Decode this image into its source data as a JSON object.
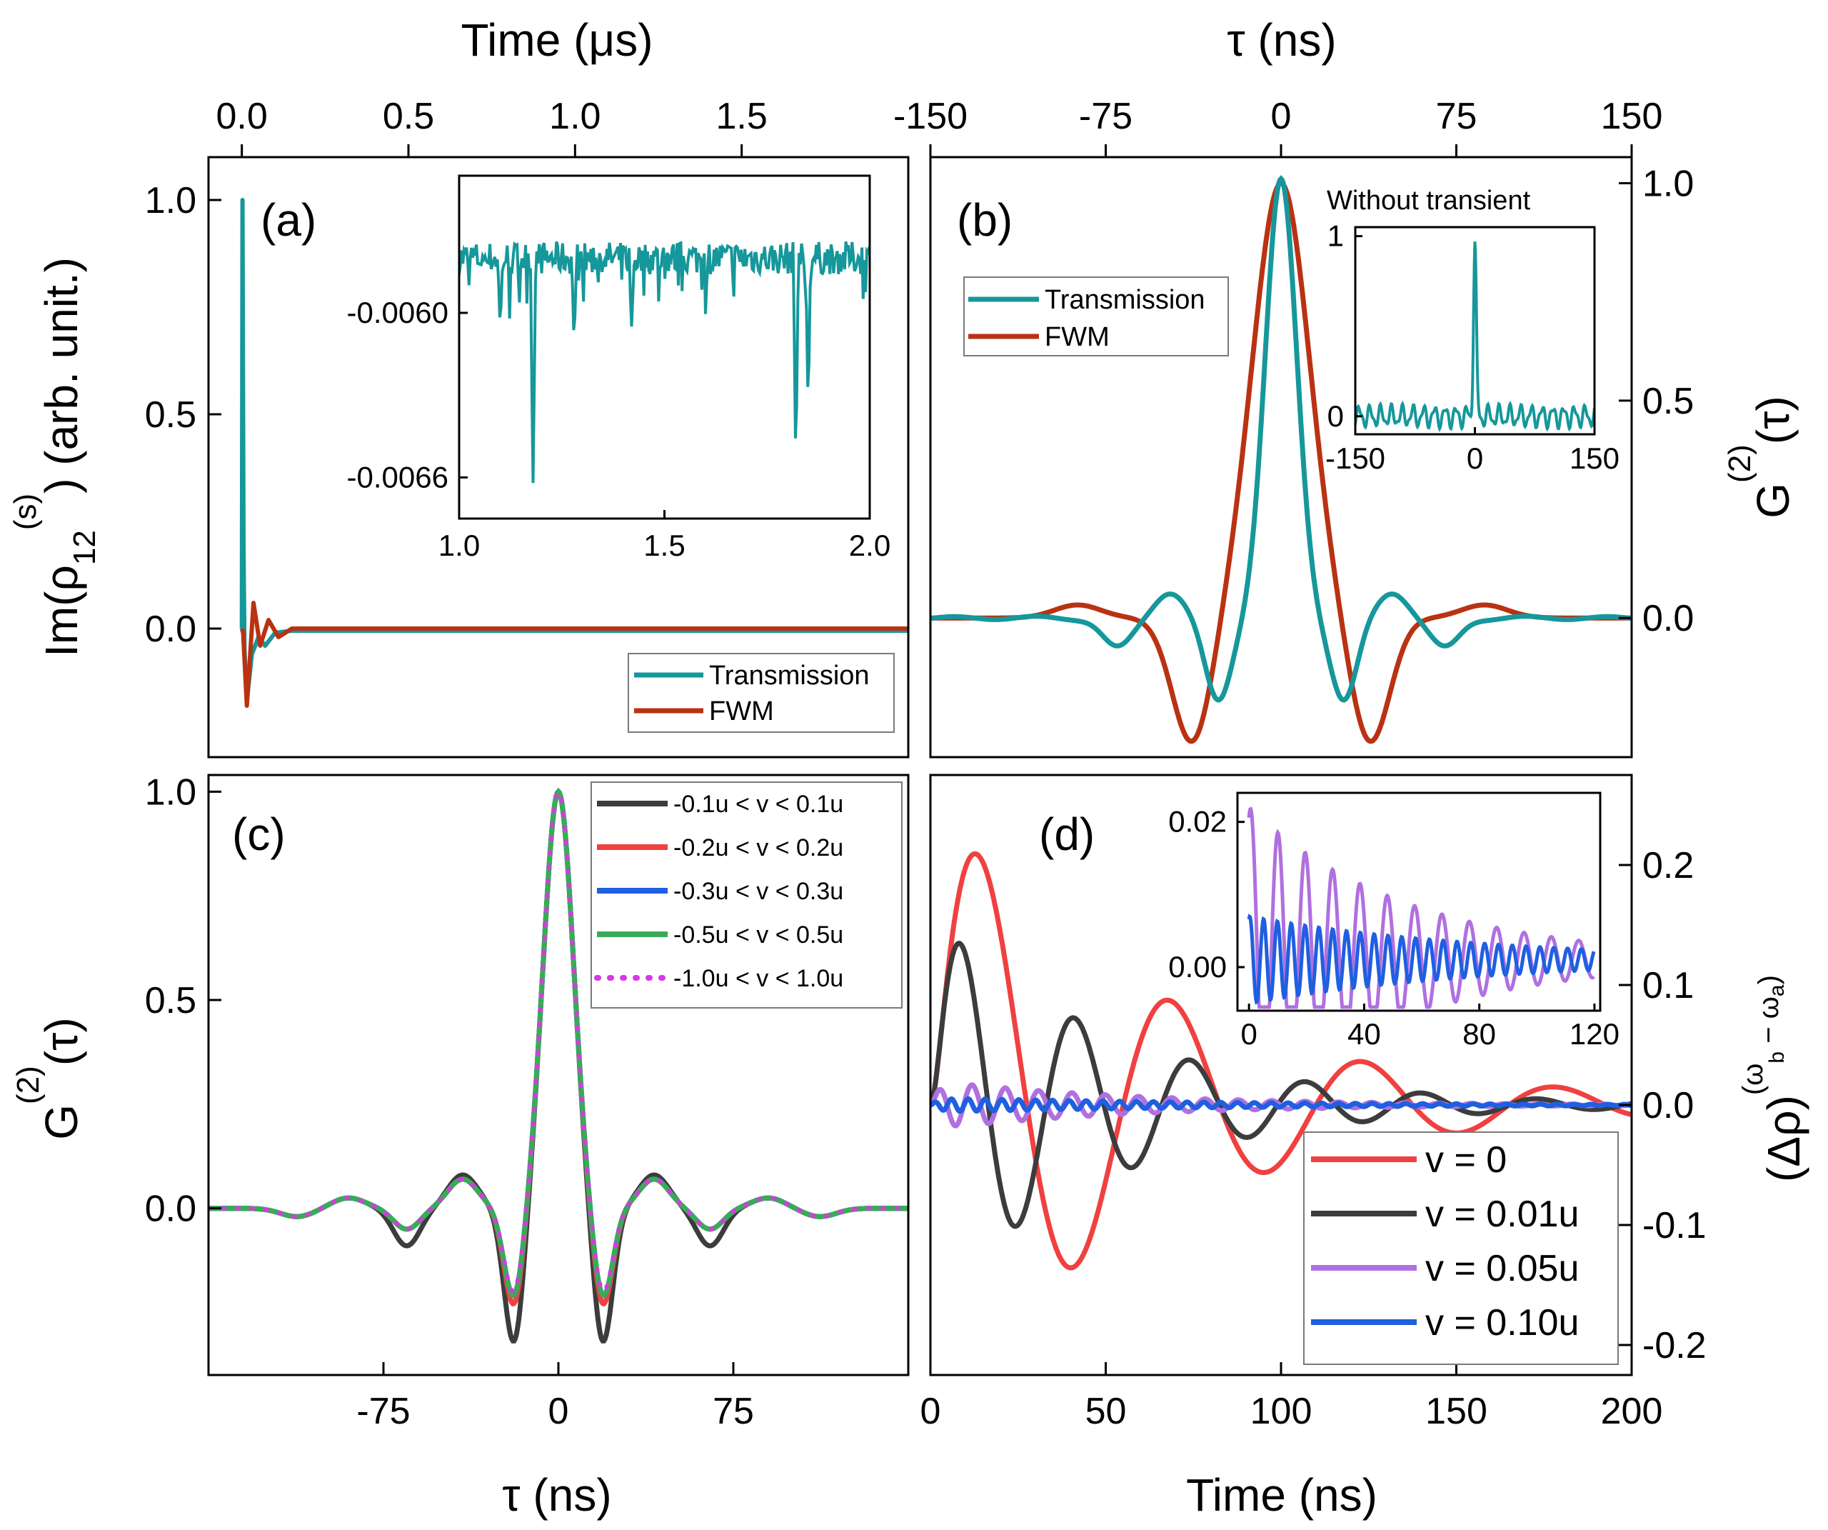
{
  "figure": {
    "top_left_axis_title": "Time (μs)",
    "top_right_axis_title": "τ (ns)",
    "bottom_left_axis_title": "τ (ns)",
    "bottom_right_axis_title": "Time (ns)"
  },
  "colors": {
    "teal": "#16979b",
    "rust": "#b93212",
    "black": "#3c3c3c",
    "red": "#f04040",
    "blue": "#1f5fe0",
    "green": "#3aaa5a",
    "magenta": "#d63ae0",
    "purple": "#b070e0"
  },
  "chart_data": [
    {
      "panel": "a",
      "label": "(a)",
      "type": "line",
      "ylabel": "Im(ρ12(s)) (arb. unit.)",
      "xlabel": "Time (μs)",
      "xlim": [
        -0.1,
        2.0
      ],
      "ylim": [
        -0.3,
        1.1
      ],
      "xticks": [
        "0.0",
        "0.5",
        "1.0",
        "1.5"
      ],
      "xtick_values": [
        0.0,
        0.5,
        1.0,
        1.5
      ],
      "yticks": [
        "0.0",
        "0.5",
        "1.0"
      ],
      "ytick_values": [
        0.0,
        0.5,
        1.0
      ],
      "series": [
        {
          "name": "Transmission",
          "color": "#16979b",
          "points": [
            [
              0,
              0
            ],
            [
              0.002,
              1.0
            ],
            [
              0.005,
              0.2
            ],
            [
              0.008,
              -0.05
            ],
            [
              0.015,
              -0.17
            ],
            [
              0.03,
              -0.06
            ],
            [
              0.05,
              -0.02
            ],
            [
              0.07,
              -0.04
            ],
            [
              0.1,
              -0.01
            ],
            [
              0.15,
              -0.005
            ],
            [
              2.0,
              -0.005
            ]
          ]
        },
        {
          "name": "FWM",
          "color": "#b93212",
          "points": [
            [
              0,
              0
            ],
            [
              0.004,
              -0.01
            ],
            [
              0.015,
              -0.18
            ],
            [
              0.035,
              0.06
            ],
            [
              0.055,
              -0.04
            ],
            [
              0.08,
              0.02
            ],
            [
              0.11,
              -0.02
            ],
            [
              0.15,
              0.0
            ],
            [
              2.0,
              0.0
            ]
          ]
        }
      ],
      "legend": {
        "entries": [
          "Transmission",
          "FWM"
        ],
        "position": "bottom-right"
      },
      "inset": {
        "xlim": [
          1.0,
          2.0
        ],
        "ylim": [
          -0.00675,
          -0.0055
        ],
        "xticks": [
          "1.0",
          "1.5",
          "2.0"
        ],
        "xtick_values": [
          1.0,
          1.5,
          2.0
        ],
        "yticks": [
          "-0.0060",
          "-0.0066"
        ],
        "ytick_values": [
          -0.006,
          -0.0066
        ],
        "baseline": -0.0058,
        "spikes": [
          [
            1.18,
            -0.00662
          ],
          [
            1.82,
            -0.0065
          ],
          [
            1.85,
            -0.0063
          ],
          [
            1.28,
            -0.00608
          ],
          [
            1.42,
            -0.00605
          ],
          [
            1.1,
            -0.00603
          ]
        ]
      }
    },
    {
      "panel": "b",
      "label": "(b)",
      "type": "line",
      "ylabel": "G(2)(τ)",
      "xlabel": "τ (ns)",
      "xlim": [
        -150,
        150
      ],
      "ylim": [
        -0.32,
        1.06
      ],
      "xticks": [
        "-150",
        "-75",
        "0",
        "75",
        "150"
      ],
      "xtick_values": [
        -150,
        -75,
        0,
        75,
        150
      ],
      "yticks": [
        "0.0",
        "0.5",
        "1.0"
      ],
      "ytick_values": [
        0.0,
        0.5,
        1.0
      ],
      "series": [
        {
          "name": "Transmission",
          "color": "#16979b",
          "peak": 1.0,
          "period": 43,
          "decay": 0.022,
          "offset": 0.0
        },
        {
          "name": "FWM",
          "color": "#b93212",
          "peak": 1.0,
          "period": 78,
          "decay": 0.018,
          "offset": 0.0
        }
      ],
      "legend": {
        "entries": [
          "Transmission",
          "FWM"
        ],
        "position": "top-left"
      },
      "inset": {
        "title": "Without transient",
        "xlim": [
          -150,
          150
        ],
        "ylim": [
          -0.1,
          1.05
        ],
        "xticks": [
          "-150",
          "0",
          "150"
        ],
        "xtick_values": [
          -150,
          0,
          150
        ],
        "yticks": [
          "0",
          "1"
        ],
        "ytick_values": [
          0,
          1
        ]
      }
    },
    {
      "panel": "c",
      "label": "(c)",
      "type": "line",
      "ylabel": "G(2)(τ)",
      "xlabel": "τ (ns)",
      "xlim": [
        -150,
        150
      ],
      "ylim": [
        -0.4,
        1.04
      ],
      "xticks": [
        "-75",
        "0",
        "75"
      ],
      "xtick_values": [
        -75,
        0,
        75
      ],
      "yticks": [
        "0.0",
        "0.5",
        "1.0"
      ],
      "ytick_values": [
        0.0,
        0.5,
        1.0
      ],
      "series": [
        {
          "name": "-0.1u < v < 0.1u",
          "color": "#3c3c3c",
          "dip": -0.33,
          "dash": false
        },
        {
          "name": "-0.2u < v < 0.2u",
          "color": "#f04040",
          "dip": -0.24,
          "dash": false
        },
        {
          "name": "-0.3u < v < 0.3u",
          "color": "#1f5fe0",
          "dip": -0.22,
          "dash": false
        },
        {
          "name": "-0.5u < v < 0.5u",
          "color": "#3aaa5a",
          "dip": -0.22,
          "dash": false
        },
        {
          "name": "-1.0u < v < 1.0u",
          "color": "#d63ae0",
          "dip": -0.21,
          "dash": true
        }
      ],
      "legend": {
        "entries": [
          "-0.1u < v < 0.1u",
          "-0.2u < v < 0.2u",
          "-0.3u < v < 0.3u",
          "-0.5u < v < 0.5u",
          "-1.0u < v < 1.0u"
        ],
        "position": "top-right"
      }
    },
    {
      "panel": "d",
      "label": "(d)",
      "type": "line",
      "ylabel": "(Δρ)(ωb − ωa)",
      "xlabel": "Time (ns)",
      "xlim": [
        0,
        200
      ],
      "ylim": [
        -0.225,
        0.275
      ],
      "xticks": [
        "0",
        "50",
        "100",
        "150",
        "200"
      ],
      "xtick_values": [
        0,
        50,
        100,
        150,
        200
      ],
      "yticks": [
        "0.2",
        "0.1",
        "0.0",
        "-0.1",
        "-0.2"
      ],
      "ytick_values": [
        0.2,
        0.1,
        0.0,
        -0.1,
        -0.2
      ],
      "series": [
        {
          "name": "v = 0",
          "color": "#f04040",
          "amp": 0.26,
          "period": 55,
          "decay": 0.016,
          "phase": 0.0
        },
        {
          "name": "v = 0.01u",
          "color": "#3c3c3c",
          "amp": 0.165,
          "period": 33,
          "decay": 0.02,
          "phase": 0.0
        },
        {
          "name": "v = 0.05u",
          "color": "#b070e0",
          "amp": 0.021,
          "period": 9.5,
          "decay": 0.018,
          "phase": 0.0
        },
        {
          "name": "v = 0.10u",
          "color": "#1f5fe0",
          "amp": 0.006,
          "period": 4.8,
          "decay": 0.012,
          "phase": 0.0
        }
      ],
      "legend": {
        "entries": [
          "v = 0",
          "v = 0.01u",
          "v = 0.05u",
          "v = 0.10u"
        ],
        "position": "bottom-right"
      },
      "inset": {
        "xlim": [
          -4,
          122
        ],
        "ylim": [
          -0.006,
          0.024
        ],
        "xticks": [
          "0",
          "40",
          "80",
          "120"
        ],
        "xtick_values": [
          0,
          40,
          80,
          120
        ],
        "yticks": [
          "0.02",
          "0.00"
        ],
        "ytick_values": [
          0.02,
          0.0
        ]
      }
    }
  ]
}
